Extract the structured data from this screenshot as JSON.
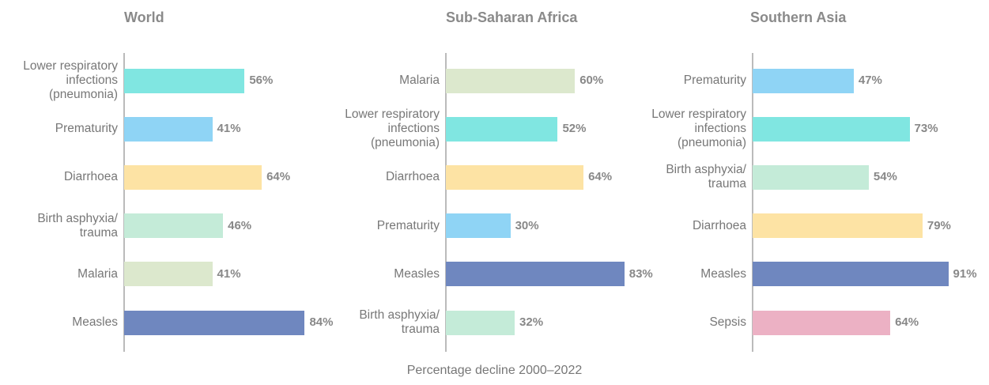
{
  "chart_data": [
    {
      "type": "bar",
      "orientation": "horizontal",
      "title": "World",
      "categories": [
        "Lower respiratory infections (pneumonia)",
        "Prematurity",
        "Diarrhoea",
        "Birth asphyxia/ trauma",
        "Malaria",
        "Measles"
      ],
      "values": [
        56,
        41,
        64,
        46,
        41,
        84
      ],
      "value_labels": [
        "56%",
        "41%",
        "64%",
        "46%",
        "41%",
        "84%"
      ],
      "colors": [
        "#80e6e1",
        "#8fd4f5",
        "#fde3a4",
        "#c4ebd8",
        "#dce8cd",
        "#6f87bf"
      ],
      "xlim": [
        0,
        100
      ]
    },
    {
      "type": "bar",
      "orientation": "horizontal",
      "title": "Sub-Saharan Africa",
      "categories": [
        "Malaria",
        "Lower respiratory infections (pneumonia)",
        "Diarrhoea",
        "Prematurity",
        "Measles",
        "Birth asphyxia/ trauma"
      ],
      "values": [
        60,
        52,
        64,
        30,
        83,
        32
      ],
      "value_labels": [
        "60%",
        "52%",
        "64%",
        "30%",
        "83%",
        "32%"
      ],
      "colors": [
        "#dce8cd",
        "#80e6e1",
        "#fde3a4",
        "#8fd4f5",
        "#6f87bf",
        "#c4ebd8"
      ],
      "xlim": [
        0,
        100
      ]
    },
    {
      "type": "bar",
      "orientation": "horizontal",
      "title": "Southern Asia",
      "categories": [
        "Prematurity",
        "Lower respiratory infections (pneumonia)",
        "Birth asphyxia/ trauma",
        "Diarrhoea",
        "Measles",
        "Sepsis"
      ],
      "values": [
        47,
        73,
        54,
        79,
        91,
        64
      ],
      "value_labels": [
        "47%",
        "73%",
        "54%",
        "79%",
        "91%",
        "64%"
      ],
      "colors": [
        "#8fd4f5",
        "#80e6e1",
        "#c4ebd8",
        "#fde3a4",
        "#6f87bf",
        "#ecb1c4"
      ],
      "xlim": [
        0,
        100
      ]
    }
  ],
  "xlabel": "Percentage decline 2000–2022"
}
